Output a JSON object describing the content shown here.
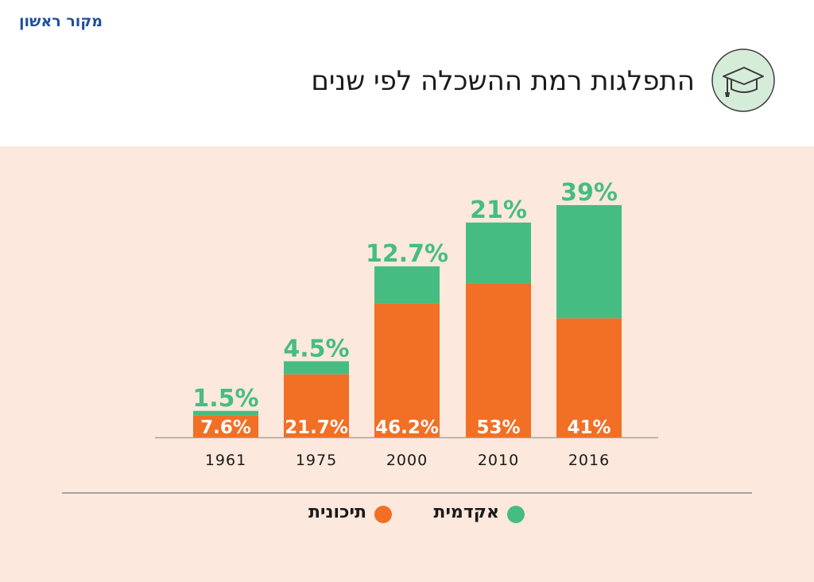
{
  "header": {
    "brand": "מקור ראשון",
    "title": "התפלגות רמת ההשכלה לפי שנים",
    "badge_icon": "graduation-cap-icon"
  },
  "colors": {
    "academic": "#45bd82",
    "highschool": "#f26f26",
    "background": "#fce8dc"
  },
  "chart_data": {
    "type": "bar",
    "stacked": true,
    "categories": [
      "1961",
      "1975",
      "2000",
      "2010",
      "2016"
    ],
    "series": [
      {
        "name": "תיכונית",
        "values": [
          7.6,
          21.7,
          46.2,
          53,
          41
        ],
        "labels": [
          "7.6%",
          "21.7%",
          "46.2%",
          "53%",
          "41%"
        ]
      },
      {
        "name": "אקדמית",
        "values": [
          1.5,
          4.5,
          12.7,
          21,
          39
        ],
        "labels": [
          "1.5%",
          "4.5%",
          "12.7%",
          "21%",
          "39%"
        ]
      }
    ],
    "legend_position": "bottom",
    "grid": false
  },
  "legend": {
    "academic": "אקדמית",
    "highschool": "תיכונית"
  }
}
